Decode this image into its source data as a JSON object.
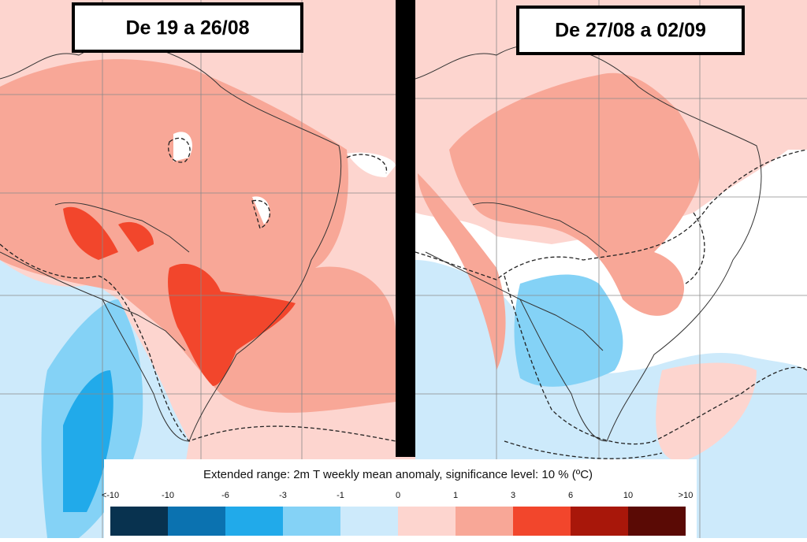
{
  "panels": [
    {
      "title": "De 19 a 26/08"
    },
    {
      "title": "De 27/08 a 02/09"
    }
  ],
  "legend": {
    "title": "Extended range: 2m T weekly mean anomaly, significance level: 10 % (ºC)",
    "labels": [
      "<-10",
      "-10",
      "-6",
      "-3",
      "-1",
      "0",
      "1",
      "3",
      "6",
      "10",
      ">10"
    ],
    "colors": [
      "#08324f",
      "#0b72b0",
      "#21aaea",
      "#84d2f6",
      "#cdeafb",
      "#fdd5cf",
      "#f8a797",
      "#f2462c",
      "#a8170a",
      "#5a0a05"
    ]
  }
}
